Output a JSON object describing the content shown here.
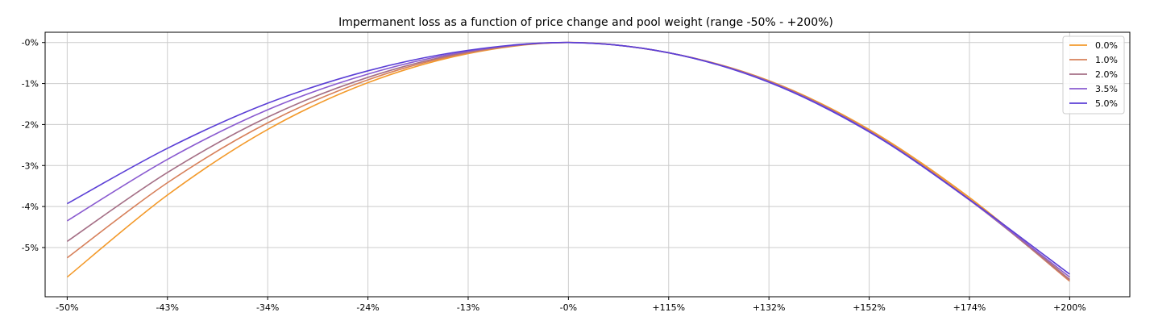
{
  "chart_data": {
    "type": "line",
    "title": "Impermanent loss as a function of price change and pool weight (range -50% - +200%)",
    "xlabel": "",
    "ylabel": "",
    "x_tick_labels": [
      "-50%",
      "-43%",
      "-34%",
      "-24%",
      "-13%",
      "-0%",
      "+115%",
      "+132%",
      "+152%",
      "+174%",
      "+200%"
    ],
    "y_tick_labels": [
      "-0%",
      "-1%",
      "-2%",
      "-3%",
      "-4%",
      "-5%"
    ],
    "y_ticks": [
      0,
      -1,
      -2,
      -3,
      -4,
      -5
    ],
    "ylim": [
      -6.2,
      0.25
    ],
    "x_index_range": [
      0,
      10
    ],
    "xlim": [
      -0.22,
      10.6
    ],
    "grid": true,
    "legend_position": "top-right",
    "series": [
      {
        "name": "0.0%",
        "color": "#f39a2b",
        "x": [
          0,
          1,
          2,
          3,
          4,
          5,
          6,
          7,
          8,
          9,
          10
        ],
        "values": [
          -5.72,
          -3.72,
          -2.12,
          -0.98,
          -0.27,
          0.0,
          -0.25,
          -0.93,
          -2.12,
          -3.78,
          -5.78
        ]
      },
      {
        "name": "1.0%",
        "color": "#d7805a",
        "x": [
          0,
          1,
          2,
          3,
          4,
          5,
          6,
          7,
          8,
          9,
          10
        ],
        "values": [
          -5.25,
          -3.42,
          -1.96,
          -0.91,
          -0.25,
          0.0,
          -0.25,
          -0.94,
          -2.15,
          -3.82,
          -5.82
        ]
      },
      {
        "name": "2.0%",
        "color": "#a56f86",
        "x": [
          0,
          1,
          2,
          3,
          4,
          5,
          6,
          7,
          8,
          9,
          10
        ],
        "values": [
          -4.85,
          -3.17,
          -1.82,
          -0.85,
          -0.23,
          0.0,
          -0.25,
          -0.95,
          -2.16,
          -3.84,
          -5.78
        ]
      },
      {
        "name": "3.5%",
        "color": "#8a5bd0",
        "x": [
          0,
          1,
          2,
          3,
          4,
          5,
          6,
          7,
          8,
          9,
          10
        ],
        "values": [
          -4.35,
          -2.85,
          -1.64,
          -0.77,
          -0.21,
          0.0,
          -0.25,
          -0.96,
          -2.17,
          -3.84,
          -5.72
        ]
      },
      {
        "name": "5.0%",
        "color": "#5b3fd6",
        "x": [
          0,
          1,
          2,
          3,
          4,
          5,
          6,
          7,
          8,
          9,
          10
        ],
        "values": [
          -3.93,
          -2.58,
          -1.48,
          -0.69,
          -0.19,
          0.0,
          -0.25,
          -0.97,
          -2.18,
          -3.83,
          -5.65
        ]
      }
    ]
  }
}
